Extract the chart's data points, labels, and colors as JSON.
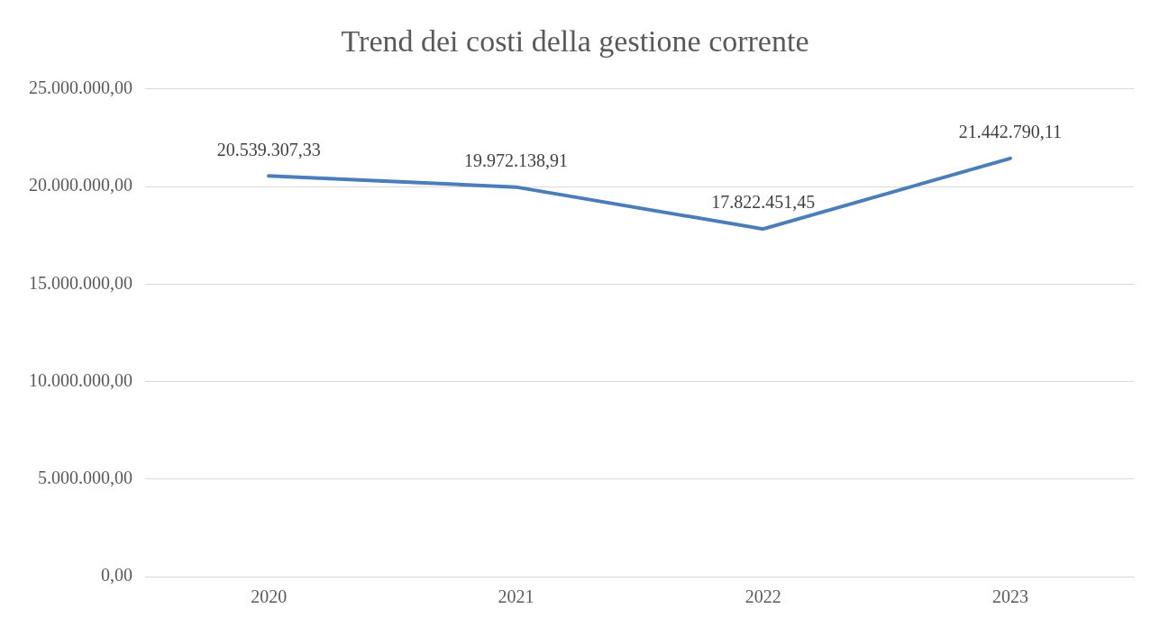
{
  "chart_data": {
    "type": "line",
    "title": "Trend dei costi della gestione corrente",
    "categories": [
      "2020",
      "2021",
      "2022",
      "2023"
    ],
    "series": [
      {
        "color": "#4a7ebb",
        "values": [
          20539307.33,
          19972138.91,
          17822451.45,
          21442790.11
        ],
        "value_labels": [
          "20.539.307,33",
          "19.972.138,91",
          "17.822.451,45",
          "21.442.790,11"
        ]
      }
    ],
    "ylim": [
      0,
      25000000
    ],
    "yticks": [
      {
        "value": 0,
        "label": "0,00"
      },
      {
        "value": 5000000,
        "label": "5.000.000,00"
      },
      {
        "value": 10000000,
        "label": "10.000.000,00"
      },
      {
        "value": 15000000,
        "label": "15.000.000,00"
      },
      {
        "value": 20000000,
        "label": "20.000.000,00"
      },
      {
        "value": 25000000,
        "label": "25.000.000,00"
      }
    ],
    "grid": "y",
    "legend": false,
    "marker": "none",
    "line_style": "solid"
  }
}
